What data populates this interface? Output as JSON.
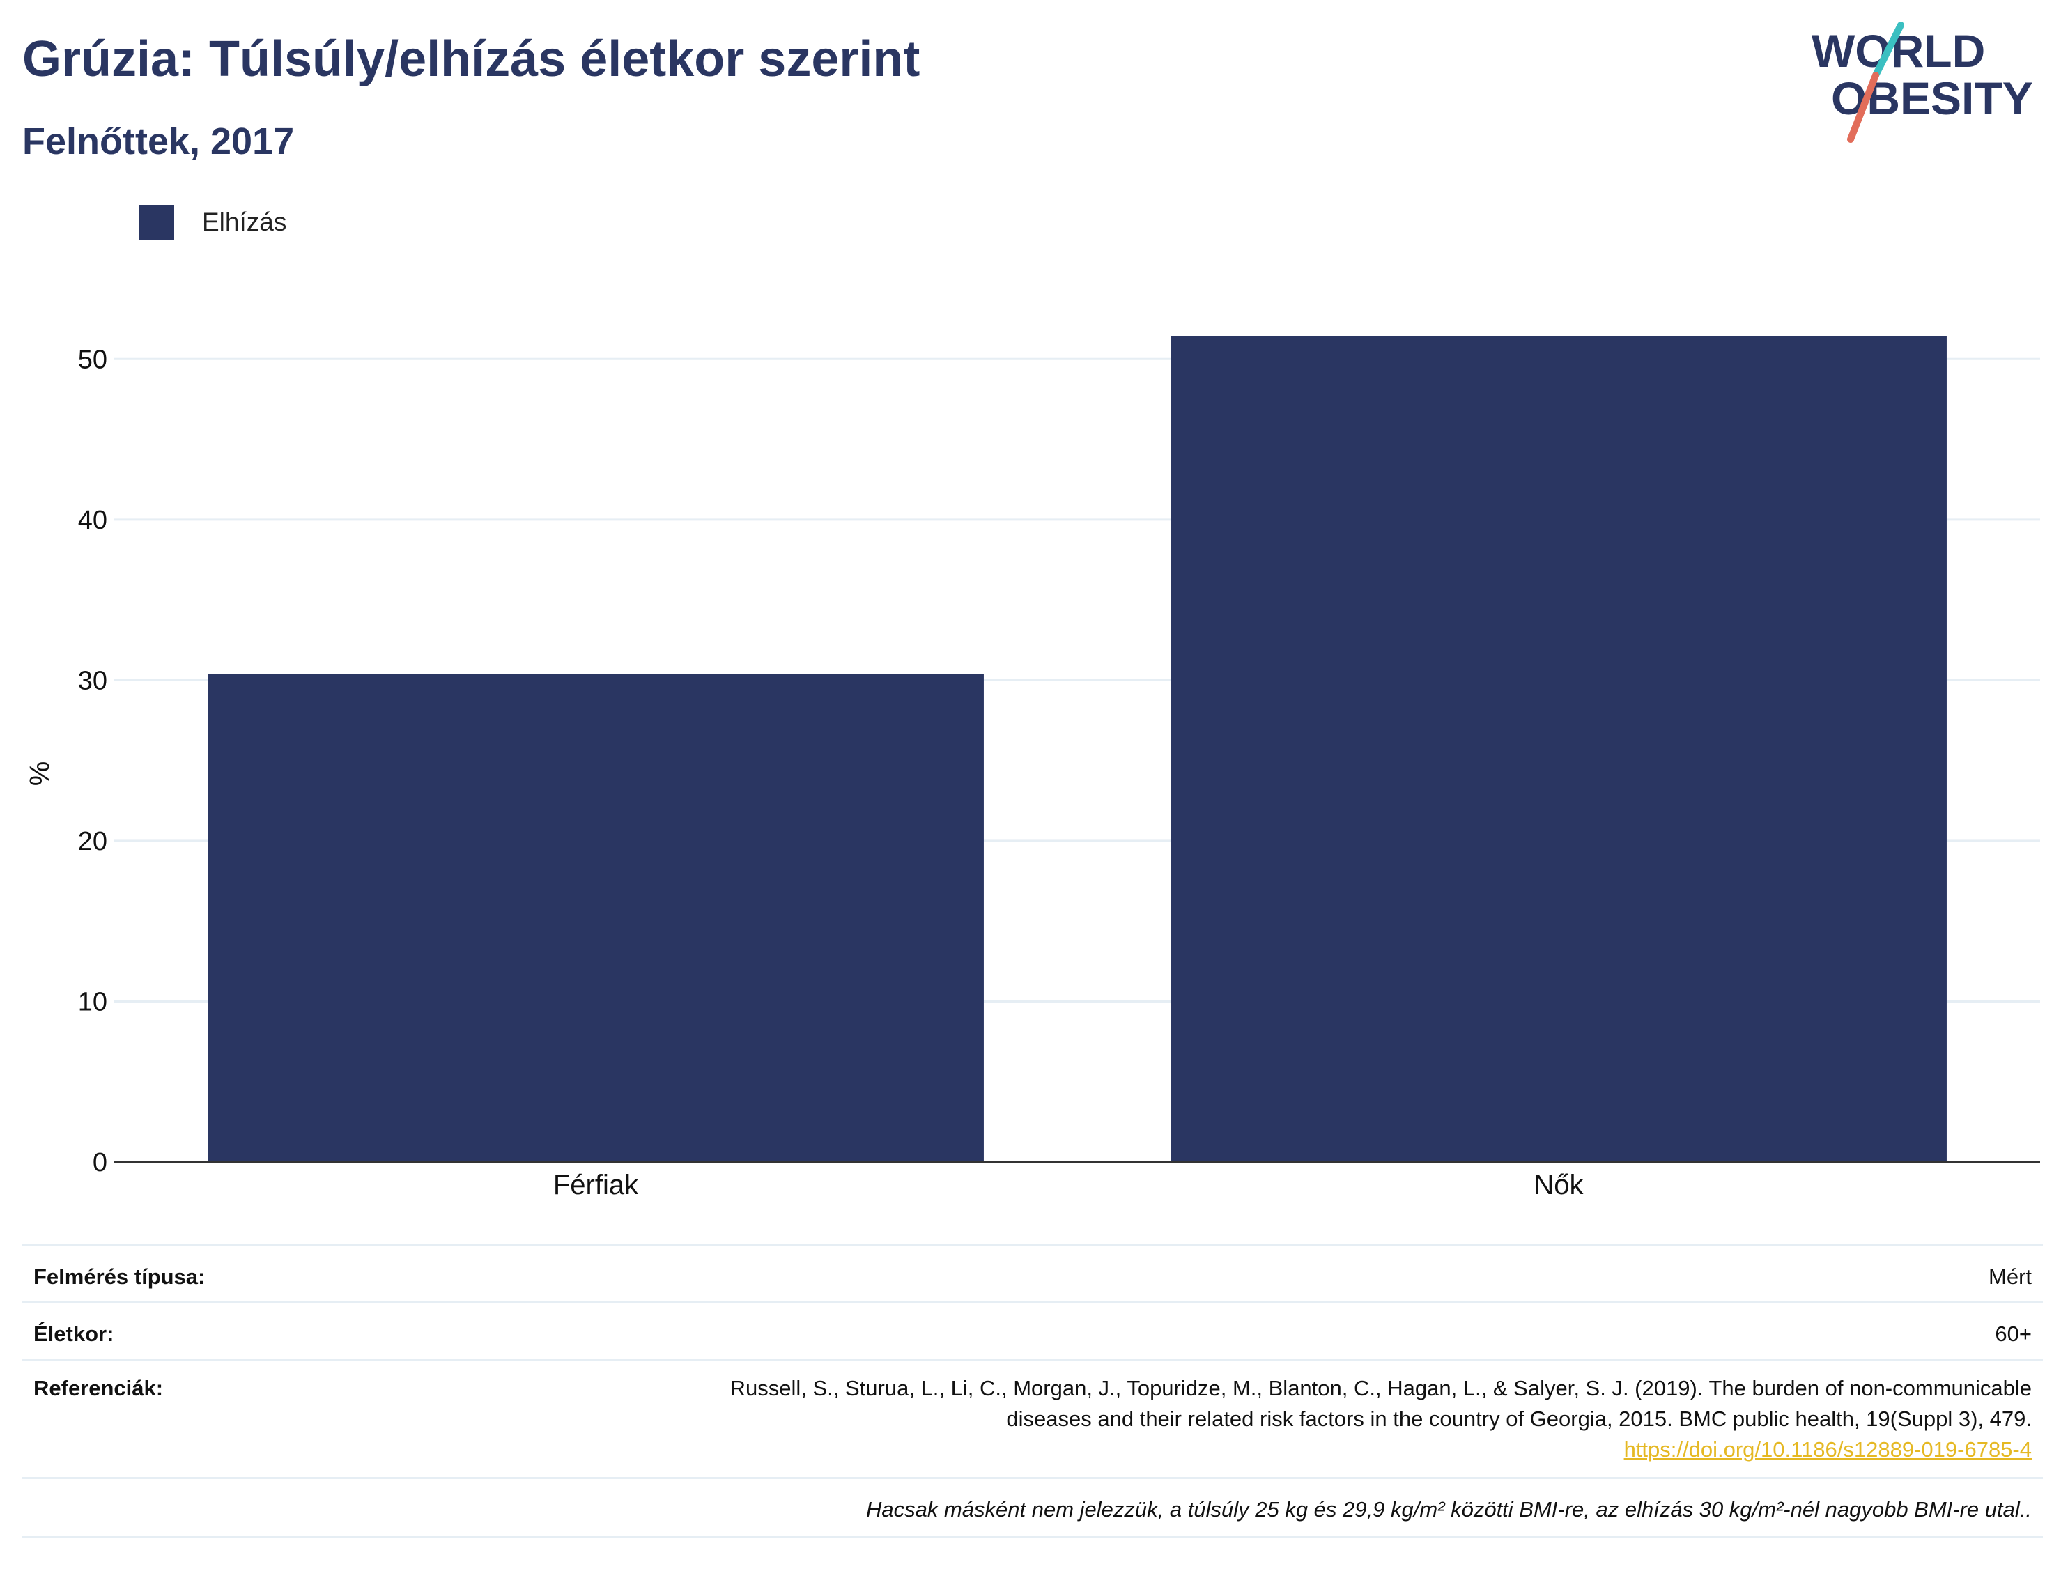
{
  "header": {
    "title": "Grúzia: Túlsúly/elhízás életkor szerint",
    "subtitle": "Felnőttek, 2017"
  },
  "logo": {
    "line1": "WORLD",
    "line2": "OBESITY",
    "colors": {
      "text": "#2a3662",
      "slash_top": "#3bbfc1",
      "slash_bottom": "#e26d5a"
    }
  },
  "colors": {
    "bar": "#2a3662",
    "grid": "#e6eef4",
    "axis": "#333333"
  },
  "chart_data": {
    "type": "bar",
    "title": "Grúzia: Túlsúly/elhízás életkor szerint",
    "subtitle": "Felnőttek, 2017",
    "categories": [
      "Férfiak",
      "Nők"
    ],
    "series": [
      {
        "name": "Elhízás",
        "values": [
          30.4,
          51.4
        ]
      }
    ],
    "xlabel": "",
    "ylabel": "%",
    "ylim": [
      0,
      55
    ],
    "yticks": [
      0,
      10,
      20,
      30,
      40,
      50
    ],
    "ytick_labels": [
      "0",
      "10",
      "20",
      "30",
      "40",
      "50"
    ],
    "grid": true,
    "legend": "top-left"
  },
  "meta": {
    "survey_type": {
      "label": "Felmérés típusa:",
      "value": "Mért"
    },
    "age": {
      "label": "Életkor:",
      "value": "60+"
    },
    "references": {
      "label": "Referenciák:",
      "line1": "Russell, S., Sturua, L., Li, C., Morgan, J., Topuridze, M., Blanton, C., Hagan, L., & Salyer, S. J. (2019). The burden of non-communicable",
      "line2": "diseases and their related risk factors in the country of Georgia, 2015. BMC public health, 19(Suppl 3), 479.",
      "link": "https://doi.org/10.1186/s12889-019-6785-4"
    },
    "footnote": "Hacsak másként nem jelezzük, a túlsúly 25 kg és 29,9 kg/m² közötti BMI-re, az elhízás 30 kg/m²-nél nagyobb BMI-re utal.."
  }
}
